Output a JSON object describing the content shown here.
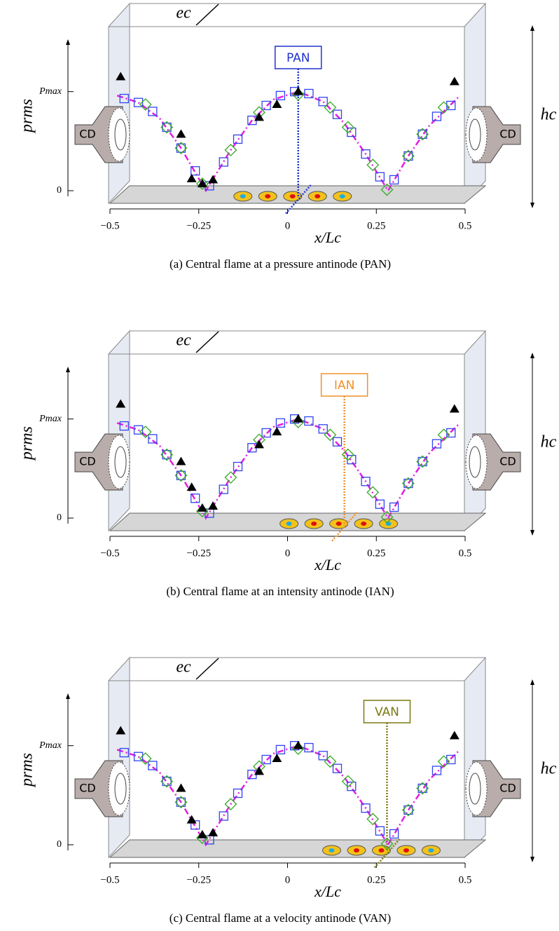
{
  "chart_data": [
    {
      "type": "scatter",
      "caption": "(a) Central flame at a pressure antinode (PAN)",
      "annotation": {
        "text": "PAN",
        "x": 0.03,
        "color": "#2233cc"
      },
      "flames_x": [
        -0.11,
        -0.04,
        0.03,
        0.1,
        0.17
      ],
      "xlabel": "x/Lc",
      "ylabel": "prms",
      "e_label": "ec",
      "h_label": "hc",
      "device": "CD",
      "xlim": [
        -0.5,
        0.5
      ],
      "ylim": [
        0,
        1.5
      ],
      "xticks": [
        {
          "value": -0.5,
          "label": "−0.5"
        },
        {
          "value": -0.25,
          "label": "−0.25"
        },
        0,
        0.25,
        0.5
      ],
      "yticks": [
        0,
        {
          "value": 1,
          "label": "Pmax"
        }
      ],
      "series": [
        {
          "marker": "line",
          "color": "#e020e0",
          "x": [
            -0.48,
            -0.42,
            -0.36,
            -0.3,
            -0.23,
            -0.16,
            -0.1,
            -0.04,
            0.03,
            0.1,
            0.16,
            0.22,
            0.283,
            0.34,
            0.4,
            0.48
          ],
          "values": [
            0.96,
            0.89,
            0.73,
            0.43,
            0,
            0.41,
            0.71,
            0.92,
            1.0,
            0.9,
            0.68,
            0.37,
            0,
            0.35,
            0.66,
            0.94
          ]
        },
        {
          "marker": "square",
          "color": "#3344ee",
          "x": [
            -0.46,
            -0.42,
            -0.38,
            -0.34,
            -0.3,
            -0.26,
            -0.22,
            -0.18,
            -0.14,
            -0.1,
            -0.06,
            -0.02,
            0.02,
            0.06,
            0.1,
            0.14,
            0.18,
            0.22,
            0.26,
            0.3,
            0.34,
            0.38,
            0.42,
            0.46
          ],
          "values": [
            0.93,
            0.89,
            0.8,
            0.64,
            0.43,
            0.2,
            0.05,
            0.29,
            0.52,
            0.71,
            0.86,
            0.96,
            1.0,
            0.98,
            0.9,
            0.77,
            0.59,
            0.37,
            0.14,
            0.11,
            0.35,
            0.57,
            0.75,
            0.86
          ]
        },
        {
          "marker": "diamond",
          "color": "#33aa22",
          "x": [
            -0.4,
            -0.34,
            -0.3,
            -0.24,
            -0.16,
            -0.08,
            0.03,
            0.12,
            0.17,
            0.24,
            0.28,
            0.34,
            0.38,
            0.44
          ],
          "values": [
            0.87,
            0.64,
            0.43,
            0.07,
            0.41,
            0.79,
            0.97,
            0.84,
            0.64,
            0.26,
            0.01,
            0.35,
            0.57,
            0.84
          ]
        },
        {
          "marker": "triangle",
          "color": "#000000",
          "x": [
            -0.47,
            -0.3,
            -0.27,
            -0.24,
            -0.21,
            -0.08,
            -0.03,
            0.03,
            0.47
          ],
          "values": [
            1.15,
            0.57,
            0.12,
            0.07,
            0.11,
            0.74,
            0.87,
            1.0,
            1.1
          ]
        }
      ]
    },
    {
      "type": "scatter",
      "caption": "(b) Central flame at an intensity antinode (IAN)",
      "annotation": {
        "text": "IAN",
        "x": 0.16,
        "color": "#f0902a"
      },
      "flames_x": [
        0.02,
        0.09,
        0.16,
        0.23,
        0.3
      ],
      "xlabel": "x/Lc",
      "ylabel": "prms",
      "e_label": "ec",
      "h_label": "hc",
      "device": "CD",
      "xlim": [
        -0.5,
        0.5
      ],
      "ylim": [
        0,
        1.5
      ],
      "xticks": [
        {
          "value": -0.5,
          "label": "−0.5"
        },
        {
          "value": -0.25,
          "label": "−0.25"
        },
        0,
        0.25,
        0.5
      ],
      "yticks": [
        0,
        {
          "value": 1,
          "label": "Pmax"
        }
      ],
      "series": [
        {
          "marker": "line",
          "color": "#e020e0",
          "x": [
            -0.48,
            -0.42,
            -0.36,
            -0.3,
            -0.23,
            -0.16,
            -0.1,
            -0.04,
            0.03,
            0.1,
            0.16,
            0.22,
            0.283,
            0.34,
            0.4,
            0.48
          ],
          "values": [
            0.96,
            0.89,
            0.73,
            0.43,
            0,
            0.41,
            0.71,
            0.92,
            1.0,
            0.9,
            0.68,
            0.37,
            0,
            0.35,
            0.66,
            0.94
          ]
        },
        {
          "marker": "square",
          "color": "#3344ee",
          "x": [
            -0.46,
            -0.42,
            -0.38,
            -0.34,
            -0.3,
            -0.26,
            -0.22,
            -0.18,
            -0.14,
            -0.1,
            -0.06,
            -0.02,
            0.02,
            0.06,
            0.1,
            0.14,
            0.18,
            0.22,
            0.26,
            0.3,
            0.34,
            0.38,
            0.42,
            0.46
          ],
          "values": [
            0.93,
            0.89,
            0.8,
            0.64,
            0.43,
            0.2,
            0.05,
            0.29,
            0.52,
            0.71,
            0.86,
            0.96,
            1.0,
            0.98,
            0.9,
            0.77,
            0.59,
            0.37,
            0.14,
            0.11,
            0.35,
            0.57,
            0.75,
            0.86
          ]
        },
        {
          "marker": "diamond",
          "color": "#33aa22",
          "x": [
            -0.4,
            -0.34,
            -0.3,
            -0.24,
            -0.16,
            -0.08,
            0.03,
            0.12,
            0.17,
            0.24,
            0.28,
            0.34,
            0.38,
            0.44
          ],
          "values": [
            0.87,
            0.64,
            0.43,
            0.07,
            0.41,
            0.79,
            0.97,
            0.84,
            0.64,
            0.26,
            0.01,
            0.35,
            0.57,
            0.84
          ]
        },
        {
          "marker": "triangle",
          "color": "#000000",
          "x": [
            -0.47,
            -0.3,
            -0.27,
            -0.24,
            -0.21,
            -0.08,
            -0.03,
            0.03,
            0.47
          ],
          "values": [
            1.15,
            0.57,
            0.31,
            0.1,
            0.12,
            0.74,
            0.87,
            1.0,
            1.1
          ]
        }
      ]
    },
    {
      "type": "scatter",
      "caption": "(c) Central flame at a velocity antinode (VAN)",
      "annotation": {
        "text": "VAN",
        "x": 0.28,
        "color": "#7a7a10"
      },
      "flames_x": [
        0.14,
        0.21,
        0.28,
        0.35,
        0.42
      ],
      "xlabel": "x/Lc",
      "ylabel": "prms",
      "e_label": "ec",
      "h_label": "hc",
      "device": "CD",
      "xlim": [
        -0.5,
        0.5
      ],
      "ylim": [
        0,
        1.5
      ],
      "xticks": [
        {
          "value": -0.5,
          "label": "−0.5"
        },
        {
          "value": -0.25,
          "label": "−0.25"
        },
        0,
        0.25,
        0.5
      ],
      "yticks": [
        0,
        {
          "value": 1,
          "label": "Pmax"
        }
      ],
      "series": [
        {
          "marker": "line",
          "color": "#e020e0",
          "x": [
            -0.48,
            -0.42,
            -0.36,
            -0.3,
            -0.23,
            -0.16,
            -0.1,
            -0.04,
            0.03,
            0.1,
            0.16,
            0.22,
            0.283,
            0.34,
            0.4,
            0.48
          ],
          "values": [
            0.96,
            0.89,
            0.73,
            0.43,
            0,
            0.41,
            0.71,
            0.92,
            1.0,
            0.9,
            0.68,
            0.37,
            0,
            0.35,
            0.66,
            0.94
          ]
        },
        {
          "marker": "square",
          "color": "#3344ee",
          "x": [
            -0.46,
            -0.42,
            -0.38,
            -0.34,
            -0.3,
            -0.26,
            -0.22,
            -0.18,
            -0.14,
            -0.1,
            -0.06,
            -0.02,
            0.02,
            0.06,
            0.1,
            0.14,
            0.18,
            0.22,
            0.26,
            0.3,
            0.34,
            0.38,
            0.42,
            0.46
          ],
          "values": [
            0.93,
            0.89,
            0.8,
            0.64,
            0.43,
            0.2,
            0.05,
            0.29,
            0.52,
            0.71,
            0.86,
            0.96,
            1.0,
            0.98,
            0.9,
            0.77,
            0.59,
            0.37,
            0.14,
            0.11,
            0.35,
            0.57,
            0.75,
            0.86
          ]
        },
        {
          "marker": "diamond",
          "color": "#33aa22",
          "x": [
            -0.4,
            -0.34,
            -0.3,
            -0.24,
            -0.16,
            -0.08,
            0.03,
            0.12,
            0.17,
            0.24,
            0.28,
            0.34,
            0.38,
            0.44
          ],
          "values": [
            0.87,
            0.64,
            0.43,
            0.07,
            0.41,
            0.79,
            0.97,
            0.84,
            0.64,
            0.26,
            0.01,
            0.35,
            0.57,
            0.84
          ]
        },
        {
          "marker": "triangle",
          "color": "#000000",
          "x": [
            -0.47,
            -0.3,
            -0.27,
            -0.24,
            -0.21,
            -0.08,
            -0.03,
            0.03,
            0.47
          ],
          "values": [
            1.15,
            0.57,
            0.25,
            0.1,
            0.12,
            0.74,
            0.87,
            1.0,
            1.1
          ]
        }
      ]
    }
  ]
}
